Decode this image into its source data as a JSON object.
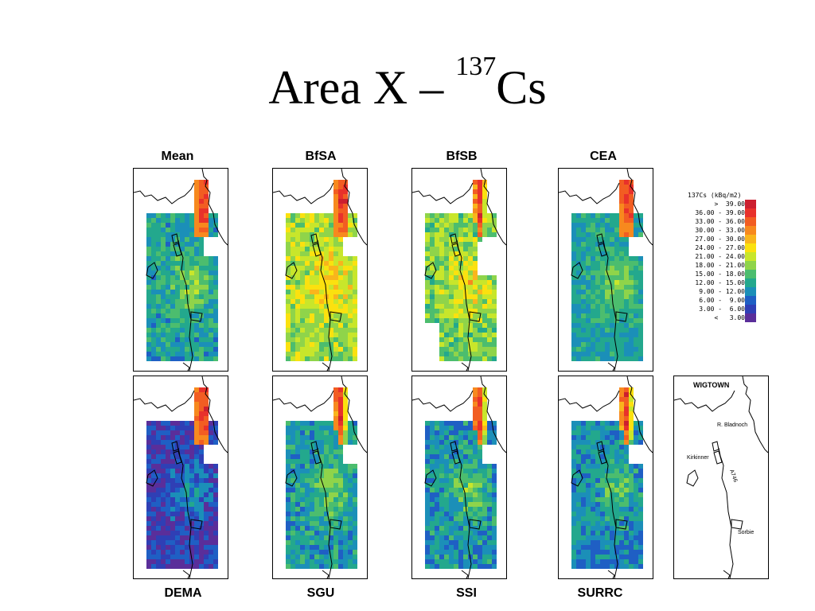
{
  "title": {
    "main": "Area X – ",
    "superscript": "137",
    "suffix": "Cs"
  },
  "panels": {
    "mean": "Mean",
    "bfsa": "BfSA",
    "bfsb": "BfSB",
    "cea": "CEA",
    "dema": "DEMA",
    "sgu": "SGU",
    "ssi": "SSI",
    "surrc": "SURRC"
  },
  "legend": {
    "title": "137Cs (kBq/m2)",
    "bins": [
      {
        "label": ">  39.00",
        "color": "#cc1f2f"
      },
      {
        "label": "36.00 - 39.00",
        "color": "#e8312b"
      },
      {
        "label": "33.00 - 36.00",
        "color": "#f25d22"
      },
      {
        "label": "30.00 - 33.00",
        "color": "#f7891e"
      },
      {
        "label": "27.00 - 30.00",
        "color": "#f9b51c"
      },
      {
        "label": "24.00 - 27.00",
        "color": "#fbe10f"
      },
      {
        "label": "21.00 - 24.00",
        "color": "#c8e62b"
      },
      {
        "label": "18.00 - 21.00",
        "color": "#8fd44a"
      },
      {
        "label": "15.00 - 18.00",
        "color": "#4cbd6e"
      },
      {
        "label": "12.00 - 15.00",
        "color": "#23a88d"
      },
      {
        "label": "9.00 - 12.00",
        "color": "#1b8fb8"
      },
      {
        "label": "6.00 -  9.00",
        "color": "#1f5fc4"
      },
      {
        "label": "3.00 -  6.00",
        "color": "#2f3fb5"
      },
      {
        "label": "<   3.00",
        "color": "#5a2e9a"
      }
    ]
  },
  "reference_map": {
    "town": "WIGTOWN",
    "river": "R. Bladnoch",
    "village1": "Kirkinner",
    "road": "A746",
    "village2": "Sorbie"
  }
}
